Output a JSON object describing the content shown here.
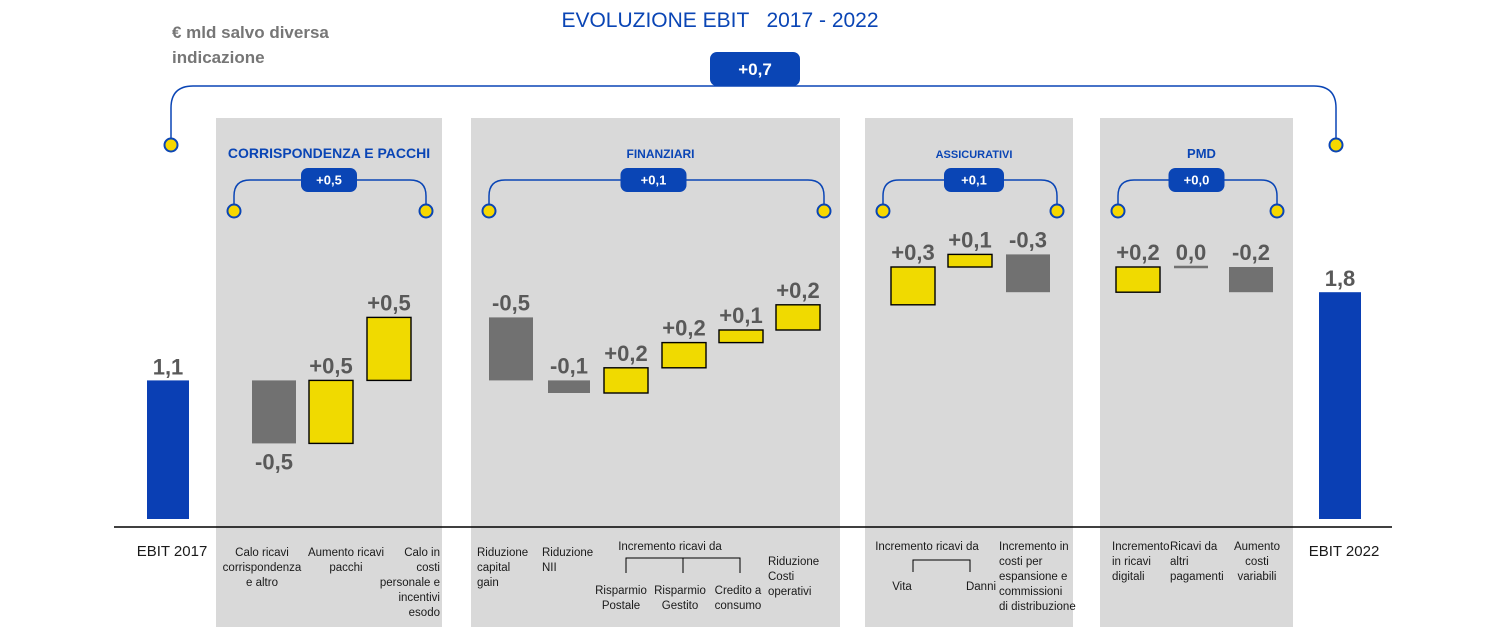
{
  "header": {
    "title": "EVOLUZIONE EBIT   2017 - 2022",
    "unit_note_line1": "€ mld salvo diversa",
    "unit_note_line2": "indicazione",
    "total_delta": "+0,7"
  },
  "colors": {
    "ebit_bar": "#0a3fb4",
    "positive": "#f0da00",
    "negative": "#717171",
    "panel": "#d9d9d9",
    "accent": "#0a45b5",
    "dot": "#f7d800"
  },
  "chart_data": {
    "type": "waterfall",
    "title": "EVOLUZIONE EBIT   2017 - 2022",
    "unit": "€ mld salvo diversa indicazione",
    "start": {
      "label": "EBIT 2017",
      "value": 1.1,
      "display": "1,1"
    },
    "end": {
      "label": "EBIT 2022",
      "value": 1.8,
      "display": "1,8"
    },
    "total_change": {
      "value": 0.7,
      "display": "+0,7"
    },
    "sections": [
      {
        "name": "CORRISPONDENZA  E PACCHI",
        "subtotal": "+0,5",
        "items": [
          {
            "label": [
              "Calo ricavi",
              "corrispondenza",
              "e altro"
            ],
            "value": -0.5,
            "display": "-0,5"
          },
          {
            "label": [
              "Aumento ricavi",
              "pacchi"
            ],
            "value": 0.5,
            "display": "+0,5"
          },
          {
            "label": [
              "Calo  in",
              "costi",
              "personale e",
              "incentivi",
              "esodo"
            ],
            "value": 0.5,
            "display": "+0,5"
          }
        ]
      },
      {
        "name": "FINANZIARI",
        "subtotal": "+0,1",
        "group_label": "Incremento ricavi da",
        "items": [
          {
            "label": [
              "Riduzione",
              "capital",
              "gain"
            ],
            "value": -0.5,
            "display": "-0,5"
          },
          {
            "label": [
              "Riduzione",
              "NII"
            ],
            "value": -0.1,
            "display": "-0,1"
          },
          {
            "label": [
              "Risparmio",
              "Postale"
            ],
            "value": 0.2,
            "display": "+0,2"
          },
          {
            "label": [
              "Risparmio",
              "Gestito"
            ],
            "value": 0.2,
            "display": "+0,2"
          },
          {
            "label": [
              "Credito a",
              "consumo"
            ],
            "value": 0.1,
            "display": "+0,1"
          },
          {
            "label": [
              "Riduzione",
              "Costi",
              "operativi"
            ],
            "value": 0.2,
            "display": "+0,2"
          }
        ]
      },
      {
        "name": "ASSICURATIVI",
        "subtotal": "+0,1",
        "group_label": "Incremento  ricavi da",
        "items": [
          {
            "label": [
              "Vita"
            ],
            "value": 0.3,
            "display": "+0,3"
          },
          {
            "label": [
              "Danni"
            ],
            "value": 0.1,
            "display": "+0,1"
          },
          {
            "label": [
              "Incremento in",
              "costi per",
              "espansione e",
              "commissioni",
              "di distribuzione"
            ],
            "value": -0.3,
            "display": "-0,3"
          }
        ]
      },
      {
        "name": "PMD",
        "subtotal": "+0,0",
        "items": [
          {
            "label": [
              "Incremento",
              "in ricavi",
              "digitali"
            ],
            "value": 0.2,
            "display": "+0,2"
          },
          {
            "label": [
              "Ricavi da",
              "altri",
              "pagamenti"
            ],
            "value": 0.0,
            "display": "0,0"
          },
          {
            "label": [
              "Aumento",
              "costi",
              "variabili"
            ],
            "value": -0.2,
            "display": "-0,2"
          }
        ]
      }
    ]
  }
}
